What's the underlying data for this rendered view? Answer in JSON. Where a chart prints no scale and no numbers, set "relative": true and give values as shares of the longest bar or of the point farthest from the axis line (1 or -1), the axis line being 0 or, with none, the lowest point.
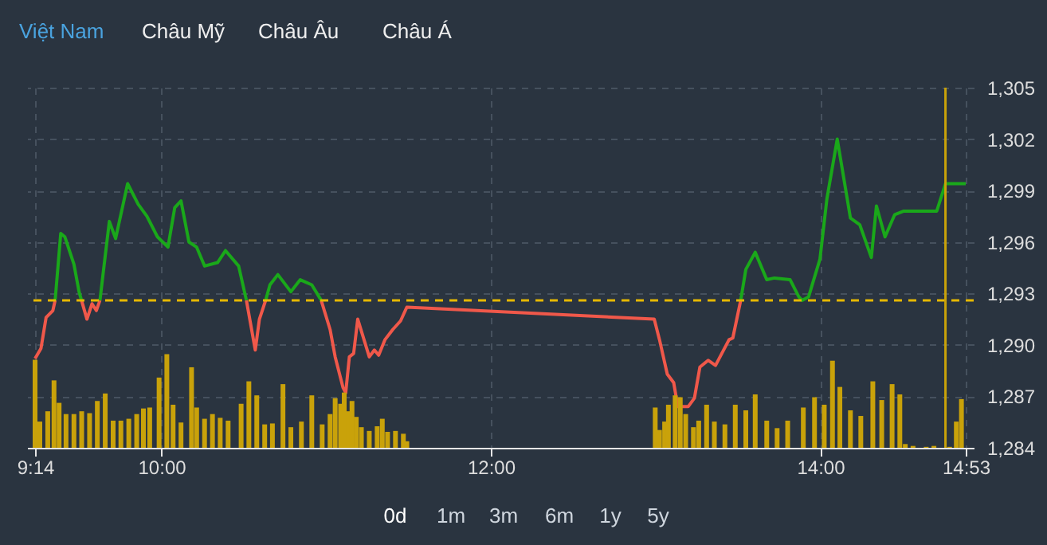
{
  "chart_data": [
    {
      "type": "line",
      "annotations": [
        "Việt Nam",
        "Châu Mỹ",
        "Châu Âu",
        "Châu Á",
        "0d",
        "1m",
        "3m",
        "6m",
        "1y",
        "5y"
      ],
      "x": [
        9.233,
        9.269,
        9.3,
        9.341,
        9.355,
        9.389,
        9.414,
        9.469,
        9.5,
        9.515,
        9.548,
        9.579,
        9.605,
        9.627,
        9.659,
        9.684,
        9.722,
        9.795,
        9.859,
        9.912,
        9.976,
        10.04,
        10.081,
        10.119,
        10.167,
        10.214,
        10.262,
        10.341,
        10.389,
        10.469,
        10.516,
        10.57,
        10.595,
        10.633,
        10.659,
        10.707,
        10.786,
        10.843,
        10.913,
        10.97,
        11.024,
        11.055,
        11.103,
        11.119,
        11.141,
        11.167,
        11.192,
        11.262,
        11.293,
        11.319,
        11.357,
        11.405,
        11.452,
        11.49,
        12.992,
        13.024,
        13.071,
        13.11,
        13.135,
        13.198,
        13.236,
        13.269,
        13.319,
        13.364,
        13.446,
        13.469,
        13.517,
        13.548,
        13.605,
        13.675,
        13.722,
        13.817,
        13.87,
        13.89,
        13.91,
        13.929,
        13.998,
        14.04,
        14.103,
        14.183,
        14.24,
        14.31,
        14.341,
        14.393,
        14.452,
        14.507,
        14.707,
        14.76,
        14.883
      ],
      "series": [
        {
          "color": "#f0584a",
          "values": [
            1289.2,
            1289.8,
            1291.6,
            1292.0,
            1292.6,
            null,
            null,
            null,
            null,
            1292.6,
            1291.5,
            1292.4,
            1292.0,
            1292.6,
            null,
            null,
            null,
            null,
            null,
            null,
            null,
            null,
            null,
            null,
            null,
            null,
            null,
            null,
            null,
            null,
            1292.6,
            1289.7,
            1291.5,
            1292.6,
            null,
            null,
            null,
            null,
            null,
            1292.6,
            1290.9,
            1289.3,
            1287.5,
            1287.2,
            1289.3,
            1289.5,
            1291.5,
            1289.3,
            1289.7,
            1289.4,
            1290.3,
            1290.9,
            1291.4,
            1292.2,
            1291.5,
            1290.3,
            1288.3,
            1287.8,
            1286.4,
            1286.4,
            1286.9,
            1288.7,
            1289.1,
            1288.8,
            1290.3,
            1290.4,
            1292.6,
            null,
            null,
            null,
            null,
            null,
            null,
            null,
            null,
            null,
            null,
            null,
            null,
            null,
            null,
            null,
            null,
            null,
            null,
            null,
            null,
            null,
            null
          ]
        },
        {
          "color": "#1aa81a",
          "values": [
            null,
            null,
            null,
            null,
            1292.6,
            1296.5,
            1296.3,
            1294.7,
            1293.1,
            1292.6,
            null,
            null,
            null,
            1292.6,
            1295.2,
            1297.2,
            1296.2,
            1299.4,
            1298.2,
            1297.5,
            1296.3,
            1295.7,
            1298.0,
            1298.4,
            1296.0,
            1295.7,
            1294.6,
            1294.8,
            1295.5,
            1294.6,
            1292.6,
            null,
            null,
            1292.6,
            1293.5,
            1294.1,
            1293.1,
            1293.8,
            1293.5,
            1292.6,
            null,
            null,
            null,
            null,
            null,
            null,
            null,
            null,
            null,
            null,
            null,
            null,
            null,
            null,
            null,
            null,
            null,
            null,
            null,
            null,
            null,
            null,
            null,
            null,
            null,
            null,
            1292.6,
            1294.4,
            1295.4,
            1293.8,
            1293.9,
            1293.8,
            1292.8,
            1292.6,
            1292.7,
            1292.8,
            1295.0,
            1298.5,
            1302.0,
            1297.4,
            1297.0,
            1295.1,
            1298.1,
            1296.3,
            1297.6,
            1297.8,
            1297.8,
            1299.4,
            1299.4
          ]
        }
      ],
      "xlim": [
        9.233,
        14.883
      ],
      "xticks": [
        {
          "value": 9.233,
          "label": "9:14"
        },
        {
          "value": 10,
          "label": "10:00"
        },
        {
          "value": 12,
          "label": "12:00"
        },
        {
          "value": 14,
          "label": "14:00"
        },
        {
          "value": 14.883,
          "label": "14:53"
        }
      ],
      "ylim": [
        1284,
        1305
      ],
      "yticks": [
        {
          "value": 1284,
          "label": "1,284"
        },
        {
          "value": 1287,
          "label": "1,287"
        },
        {
          "value": 1290,
          "label": "1,290"
        },
        {
          "value": 1293,
          "label": "1,293"
        },
        {
          "value": 1296,
          "label": "1,296"
        },
        {
          "value": 1299,
          "label": "1,299"
        },
        {
          "value": 1302,
          "label": "1,302"
        },
        {
          "value": 1305,
          "label": "1,305"
        }
      ],
      "ref_lines": [
        {
          "axis": "y",
          "value": 1292.6,
          "color": "#e6b800",
          "line_style": "dashed"
        },
        {
          "axis": "x",
          "value": 14.76,
          "color": "#c9a20a",
          "line_style": "solid"
        }
      ],
      "grid": true,
      "line_style": "solid"
    },
    {
      "type": "bar",
      "relative": true,
      "color": "#c9a20a",
      "xlim": [
        9.233,
        14.883
      ],
      "x": [
        9.233,
        9.262,
        9.31,
        9.348,
        9.379,
        9.421,
        9.469,
        9.516,
        9.564,
        9.611,
        9.659,
        9.707,
        9.754,
        9.802,
        9.85,
        9.891,
        9.929,
        9.986,
        10.033,
        10.071,
        10.119,
        10.183,
        10.214,
        10.262,
        10.31,
        10.357,
        10.405,
        10.484,
        10.531,
        10.579,
        10.627,
        10.674,
        10.738,
        10.786,
        10.85,
        10.913,
        10.976,
        11.024,
        11.055,
        11.088,
        11.11,
        11.135,
        11.157,
        11.183,
        11.214,
        11.262,
        11.31,
        11.341,
        11.373,
        11.421,
        11.469,
        11.49,
        12.998,
        13.024,
        13.055,
        13.078,
        13.119,
        13.15,
        13.183,
        13.23,
        13.262,
        13.31,
        13.357,
        13.421,
        13.484,
        13.548,
        13.605,
        13.675,
        13.738,
        13.802,
        13.897,
        13.965,
        14.024,
        14.074,
        14.119,
        14.183,
        14.246,
        14.319,
        14.373,
        14.436,
        14.483,
        14.516,
        14.563,
        14.643,
        14.69,
        14.785,
        14.826,
        14.857
      ],
      "values": [
        0.94,
        0.28,
        0.39,
        0.72,
        0.48,
        0.36,
        0.36,
        0.39,
        0.37,
        0.5,
        0.58,
        0.29,
        0.29,
        0.31,
        0.36,
        0.42,
        0.43,
        0.75,
        1.0,
        0.46,
        0.27,
        0.86,
        0.43,
        0.31,
        0.36,
        0.32,
        0.29,
        0.47,
        0.71,
        0.56,
        0.25,
        0.26,
        0.68,
        0.22,
        0.28,
        0.56,
        0.25,
        0.36,
        0.53,
        0.47,
        0.59,
        0.39,
        0.5,
        0.33,
        0.22,
        0.18,
        0.23,
        0.31,
        0.17,
        0.18,
        0.15,
        0.07,
        0.43,
        0.19,
        0.28,
        0.46,
        0.56,
        0.54,
        0.36,
        0.22,
        0.29,
        0.46,
        0.28,
        0.25,
        0.46,
        0.4,
        0.57,
        0.29,
        0.21,
        0.29,
        0.43,
        0.54,
        0.46,
        0.93,
        0.65,
        0.4,
        0.34,
        0.71,
        0.51,
        0.68,
        0.57,
        0.04,
        0.02,
        0.01,
        0.02,
        0.01,
        0.28,
        0.52
      ]
    }
  ]
}
